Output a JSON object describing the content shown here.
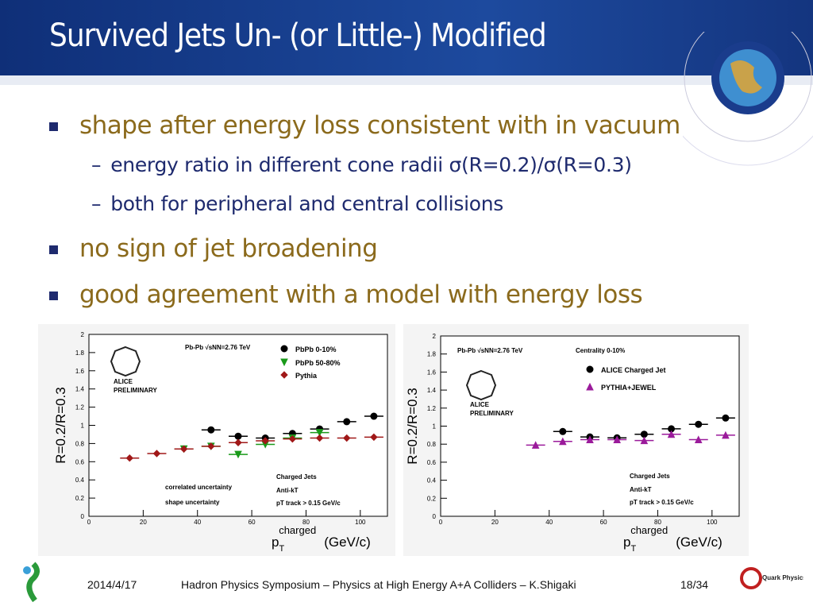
{
  "header": {
    "title": "Survived Jets Un- (or Little-) Modified"
  },
  "bullets": [
    {
      "text": "shape after energy loss consistent with in vacuum",
      "sub": [
        "energy ratio in different cone radii σ(R=0.2)/σ(R=0.3)",
        "both for peripheral and central collisions"
      ]
    },
    {
      "text": "no sign of jet broadening",
      "sub": []
    },
    {
      "text": "good agreement with a model with energy loss",
      "sub": []
    }
  ],
  "chart_data": [
    {
      "type": "scatter",
      "y_label": "R=0.2/R=0.3",
      "x_label": {
        "main": "p",
        "sub": "T",
        "sup": "charged",
        "unit": "(GeV/c)"
      },
      "xlim": [
        0,
        110
      ],
      "xticks": [
        0,
        20,
        40,
        60,
        80,
        100
      ],
      "ylim": [
        0,
        2
      ],
      "yticks": [
        0,
        0.2,
        0.4,
        0.6,
        0.8,
        1,
        1.2,
        1.4,
        1.6,
        1.8,
        2
      ],
      "series": [
        {
          "name": "PbPb 0-10%",
          "color": "#000000",
          "marker": "circle",
          "x": [
            45,
            55,
            65,
            75,
            85,
            95,
            105
          ],
          "values": [
            0.95,
            0.88,
            0.86,
            0.91,
            0.96,
            1.04,
            1.1
          ]
        },
        {
          "name": "PbPb 50-80%",
          "color": "#1a9a1a",
          "marker": "triangle-down",
          "x": [
            35,
            45,
            55,
            65,
            75,
            85
          ],
          "values": [
            0.74,
            0.77,
            0.68,
            0.79,
            0.86,
            0.92
          ]
        },
        {
          "name": "Pythia",
          "color": "#a01818",
          "marker": "diamond",
          "x": [
            15,
            25,
            35,
            45,
            55,
            65,
            75,
            85,
            95,
            105
          ],
          "values": [
            0.64,
            0.69,
            0.74,
            0.77,
            0.81,
            0.83,
            0.85,
            0.86,
            0.86,
            0.87
          ]
        }
      ],
      "annotations": [
        "Pb-Pb √sNN=2.76 TeV",
        "ALICE",
        "PRELIMINARY",
        "correlated uncertainty",
        "shape uncertainty",
        "Charged Jets",
        "Anti-kT",
        "pT track > 0.15 GeV/c"
      ]
    },
    {
      "type": "scatter",
      "y_label": "R=0.2/R=0.3",
      "x_label": {
        "main": "p",
        "sub": "T",
        "sup": "charged",
        "unit": "(GeV/c)"
      },
      "xlim": [
        0,
        110
      ],
      "xticks": [
        0,
        20,
        40,
        60,
        80,
        100
      ],
      "ylim": [
        0,
        2
      ],
      "yticks": [
        0,
        0.2,
        0.4,
        0.6,
        0.8,
        1,
        1.2,
        1.4,
        1.6,
        1.8,
        2
      ],
      "series": [
        {
          "name": "ALICE Charged Jet",
          "color": "#000000",
          "marker": "circle",
          "x": [
            45,
            55,
            65,
            75,
            85,
            95,
            105
          ],
          "values": [
            0.94,
            0.88,
            0.87,
            0.91,
            0.97,
            1.02,
            1.09
          ]
        },
        {
          "name": "PYTHIA+JEWEL",
          "color": "#9b1b9b",
          "marker": "triangle-up",
          "x": [
            35,
            45,
            55,
            65,
            75,
            85,
            95,
            105
          ],
          "values": [
            0.79,
            0.83,
            0.85,
            0.85,
            0.84,
            0.91,
            0.85,
            0.9
          ]
        }
      ],
      "annotations": [
        "Pb-Pb √sNN=2.76 TeV",
        "Centrality 0-10%",
        "ALICE",
        "PRELIMINARY",
        "Charged Jets",
        "Anti-kT",
        "pT track > 0.15 GeV/c"
      ]
    }
  ],
  "footer": {
    "date": "2014/4/17",
    "title": "Hadron Physics Symposium – Physics at High Energy A+A Colliders – K.Shigaki",
    "page": "18/34",
    "logo": "Quark Physics Laboratory"
  }
}
